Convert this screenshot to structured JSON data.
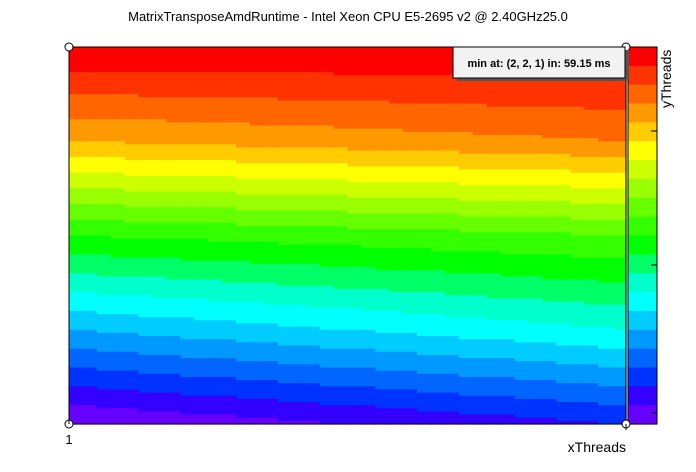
{
  "chart_data": {
    "type": "heatmap",
    "title": "MatrixTransposeAmdRuntime - Intel Xeon CPU E5-2695 v2 @ 2.40GHz25.0",
    "xlabel": "xThreads",
    "ylabel": "yThreads",
    "x_tick_labels": [
      "1"
    ],
    "annotation": "min at: (2, 2, 1) in: 59.15 ms",
    "palette_levels": 20,
    "colormap": "rainbow (red → violet, top to bottom of palette)",
    "grid": false,
    "legend_placement": "right (color palette)",
    "field_description_rows": [
      {
        "y_frac": 1.0,
        "level_left": 20,
        "level_right": 20
      },
      {
        "y_frac": 0.75,
        "level_left": 16,
        "level_right": 17
      },
      {
        "y_frac": 0.5,
        "level_left": 10,
        "level_right": 11
      },
      {
        "y_frac": 0.25,
        "level_left": 5,
        "level_right": 7
      },
      {
        "y_frac": 0.0,
        "level_left": 0,
        "level_right": 2
      }
    ]
  },
  "colors": {
    "palette": [
      "#ff0000",
      "#ff3300",
      "#ff6600",
      "#ff9900",
      "#ffcc00",
      "#ffff00",
      "#ccff00",
      "#99ff00",
      "#66ff00",
      "#33ff00",
      "#00ff00",
      "#00ff66",
      "#00ffcc",
      "#00ffff",
      "#00ccff",
      "#0099ff",
      "#0066ff",
      "#0033ff",
      "#3300ff",
      "#6600ff"
    ]
  }
}
